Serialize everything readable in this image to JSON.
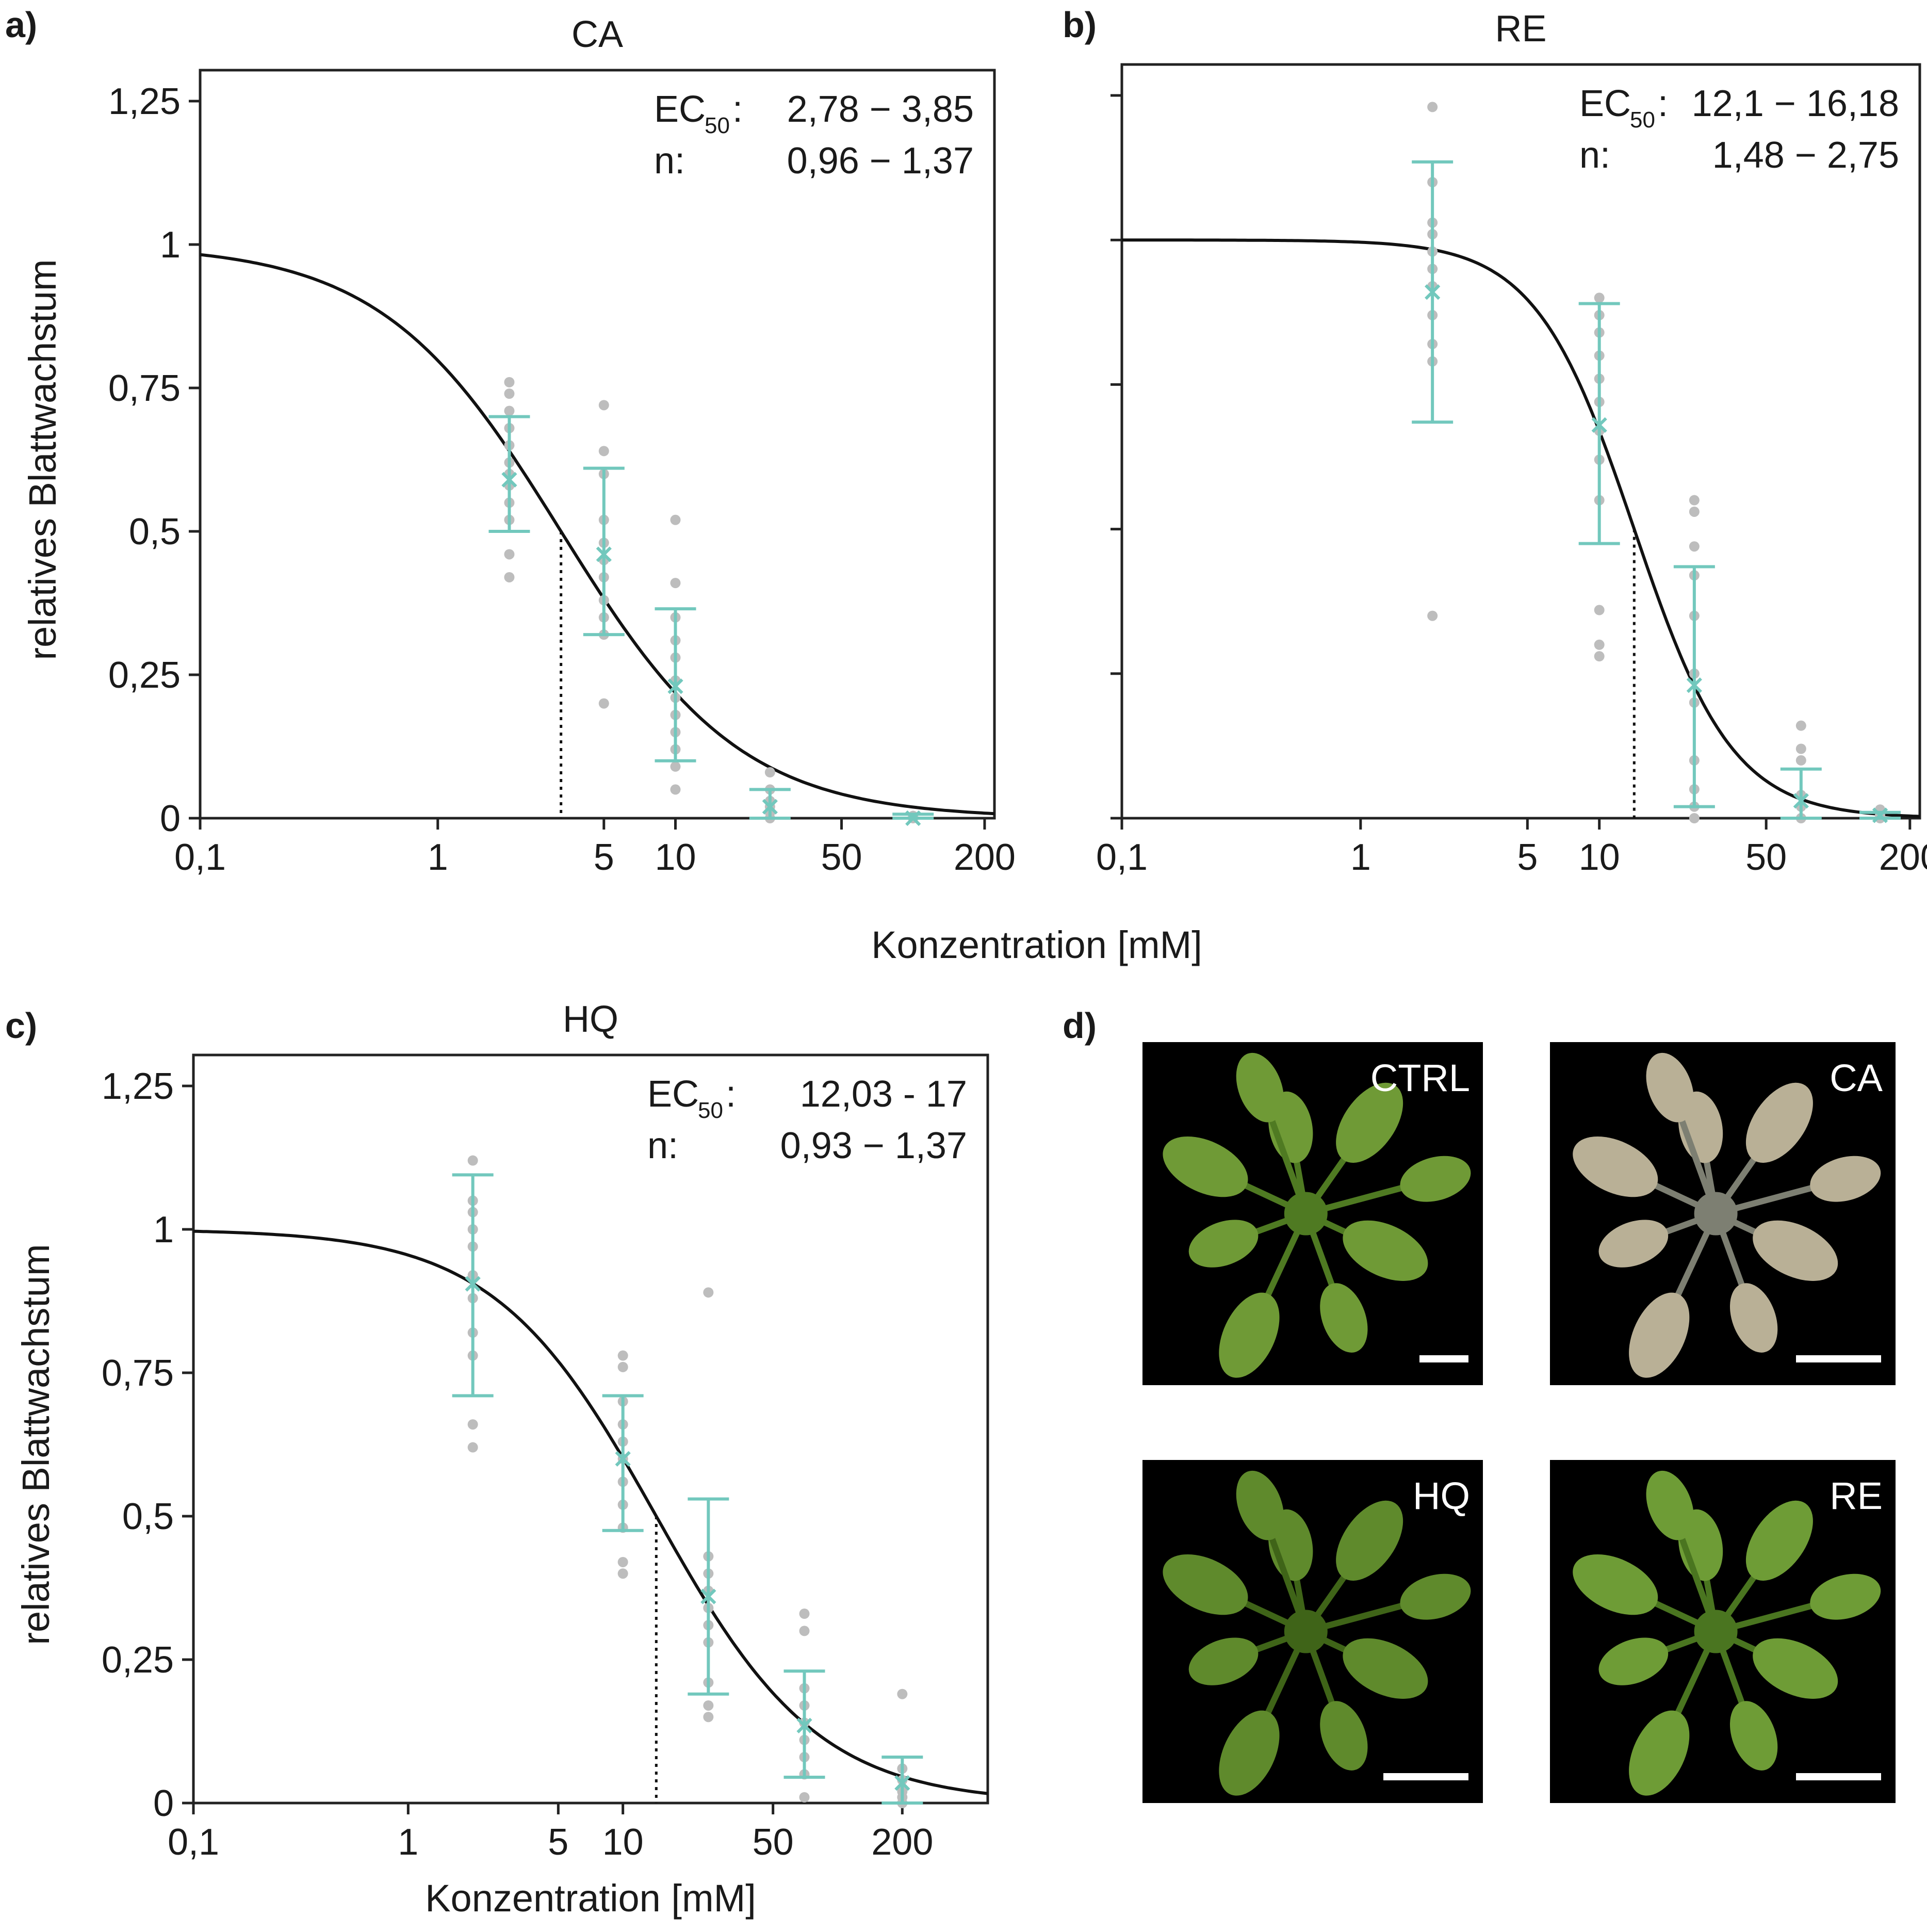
{
  "figure": {
    "shared_xlabel": "Konzentration [mM]",
    "photos": {
      "label": "d)",
      "items": [
        {
          "label": "CTRL",
          "leaf_color": "#6f9a36",
          "leaf_dark": "#4f7a22"
        },
        {
          "label": "CA",
          "leaf_color": "#b9b096",
          "leaf_dark": "#7d7f72"
        },
        {
          "label": "HQ",
          "leaf_color": "#5f8a2c",
          "leaf_dark": "#3f6418"
        },
        {
          "label": "RE",
          "leaf_color": "#6e9c36",
          "leaf_dark": "#4a7520"
        }
      ]
    }
  },
  "chart_data": [
    {
      "panel": "a)",
      "type": "scatter",
      "title": "CA",
      "xlabel": "",
      "ylabel": "relatives Blattwachstum",
      "xscale": "log",
      "xlim": [
        0.1,
        220
      ],
      "ylim": [
        0,
        1.25
      ],
      "xticks": [
        {
          "v": 0.1,
          "label": "0,1"
        },
        {
          "v": 1,
          "label": "1"
        },
        {
          "v": 5,
          "label": "5"
        },
        {
          "v": 10,
          "label": "10"
        },
        {
          "v": 50,
          "label": "50"
        },
        {
          "v": 200,
          "label": "200"
        }
      ],
      "yticks": [
        {
          "v": 0,
          "label": "0"
        },
        {
          "v": 0.25,
          "label": "0,25"
        },
        {
          "v": 0.5,
          "label": "0,5"
        },
        {
          "v": 0.75,
          "label": "0,75"
        },
        {
          "v": 1,
          "label": "1"
        },
        {
          "v": 1.25,
          "label": "1,25"
        }
      ],
      "annotation": {
        "ec50_label": "EC",
        "ec50_sub": "50",
        "ec50_colon": ":",
        "ec50_value": "2,78 − 3,85",
        "n_label": "n:",
        "n_value": "0,96 − 1,37"
      },
      "fit": {
        "ec50": 3.3,
        "hill": 1.15
      },
      "ec50_line_x": 3.3,
      "point_color": "#bdbdbd",
      "mean_color": "#72c8bd",
      "curve_color": "#111111",
      "groups": [
        {
          "x": 2,
          "mean": 0.59,
          "err_lo": 0.5,
          "err_hi": 0.7,
          "points": [
            0.42,
            0.46,
            0.52,
            0.55,
            0.58,
            0.6,
            0.62,
            0.65,
            0.68,
            0.71,
            0.74,
            0.76
          ]
        },
        {
          "x": 5,
          "mean": 0.46,
          "err_lo": 0.32,
          "err_hi": 0.61,
          "points": [
            0.2,
            0.32,
            0.35,
            0.38,
            0.42,
            0.45,
            0.48,
            0.52,
            0.6,
            0.64,
            0.72
          ]
        },
        {
          "x": 10,
          "mean": 0.23,
          "err_lo": 0.1,
          "err_hi": 0.365,
          "points": [
            0.05,
            0.09,
            0.12,
            0.15,
            0.18,
            0.21,
            0.24,
            0.28,
            0.31,
            0.35,
            0.41,
            0.52
          ]
        },
        {
          "x": 25,
          "mean": 0.02,
          "err_lo": 0.0,
          "err_hi": 0.05,
          "points": [
            0.0,
            0.01,
            0.02,
            0.03,
            0.05,
            0.08
          ]
        },
        {
          "x": 100,
          "mean": 0.0,
          "err_lo": 0.0,
          "err_hi": 0.007,
          "points": [
            0.0,
            0.002,
            0.004
          ]
        }
      ]
    },
    {
      "panel": "b)",
      "type": "scatter",
      "title": "RE",
      "xlabel": "",
      "ylabel": "",
      "xscale": "log",
      "xlim": [
        0.1,
        220
      ],
      "ylim": [
        0,
        1.25
      ],
      "xticks": [
        {
          "v": 0.1,
          "label": "0,1"
        },
        {
          "v": 1,
          "label": "1"
        },
        {
          "v": 5,
          "label": "5"
        },
        {
          "v": 10,
          "label": "10"
        },
        {
          "v": 50,
          "label": "50"
        },
        {
          "v": 200,
          "label": "200"
        }
      ],
      "yticks": [
        {
          "v": 0,
          "label": ""
        },
        {
          "v": 0.25,
          "label": ""
        },
        {
          "v": 0.5,
          "label": ""
        },
        {
          "v": 0.75,
          "label": ""
        },
        {
          "v": 1,
          "label": ""
        },
        {
          "v": 1.25,
          "label": ""
        }
      ],
      "annotation": {
        "ec50_label": "EC",
        "ec50_sub": "50",
        "ec50_colon": ":",
        "ec50_value": "12,1 − 16,18",
        "n_label": "n:",
        "n_value": "1,48 − 2,75"
      },
      "fit": {
        "ec50": 14,
        "hill": 2.1
      },
      "ec50_line_x": 14,
      "point_color": "#bdbdbd",
      "mean_color": "#72c8bd",
      "curve_color": "#111111",
      "groups": [
        {
          "x": 2,
          "mean": 0.91,
          "err_lo": 0.685,
          "err_hi": 1.135,
          "points": [
            0.35,
            0.79,
            0.82,
            0.87,
            0.92,
            0.95,
            0.98,
            1.01,
            1.03,
            1.1,
            1.23
          ]
        },
        {
          "x": 10,
          "mean": 0.68,
          "err_lo": 0.475,
          "err_hi": 0.89,
          "points": [
            0.28,
            0.3,
            0.36,
            0.55,
            0.62,
            0.67,
            0.72,
            0.76,
            0.8,
            0.84,
            0.87,
            0.9
          ]
        },
        {
          "x": 25,
          "mean": 0.23,
          "err_lo": 0.02,
          "err_hi": 0.435,
          "points": [
            0.0,
            0.02,
            0.05,
            0.1,
            0.2,
            0.25,
            0.35,
            0.42,
            0.47,
            0.53,
            0.55
          ]
        },
        {
          "x": 70,
          "mean": 0.03,
          "err_lo": 0.0,
          "err_hi": 0.085,
          "points": [
            0.0,
            0.02,
            0.04,
            0.1,
            0.12,
            0.16
          ]
        },
        {
          "x": 150,
          "mean": 0.005,
          "err_lo": 0.0,
          "err_hi": 0.01,
          "points": [
            0.0,
            0.005,
            0.01,
            0.015
          ]
        }
      ]
    },
    {
      "panel": "c)",
      "type": "scatter",
      "title": "HQ",
      "xlabel": "Konzentration [mM]",
      "ylabel": "relatives Blattwachstum",
      "xscale": "log",
      "xlim": [
        0.1,
        500
      ],
      "ylim": [
        0,
        1.25
      ],
      "xticks": [
        {
          "v": 0.1,
          "label": "0,1"
        },
        {
          "v": 1,
          "label": "1"
        },
        {
          "v": 5,
          "label": "5"
        },
        {
          "v": 10,
          "label": "10"
        },
        {
          "v": 50,
          "label": "50"
        },
        {
          "v": 200,
          "label": "200"
        }
      ],
      "yticks": [
        {
          "v": 0,
          "label": "0"
        },
        {
          "v": 0.25,
          "label": "0,25"
        },
        {
          "v": 0.5,
          "label": "0,5"
        },
        {
          "v": 0.75,
          "label": "0,75"
        },
        {
          "v": 1,
          "label": "1"
        },
        {
          "v": 1.25,
          "label": "1,25"
        }
      ],
      "annotation": {
        "ec50_label": "EC",
        "ec50_sub": "50",
        "ec50_colon": ":",
        "ec50_value": "12,03 - 17",
        "n_label": "n:",
        "n_value": "0,93 − 1,37"
      },
      "fit": {
        "ec50": 14.3,
        "hill": 1.15
      },
      "ec50_line_x": 14.3,
      "point_color": "#bdbdbd",
      "mean_color": "#72c8bd",
      "curve_color": "#111111",
      "groups": [
        {
          "x": 2,
          "mean": 0.905,
          "err_lo": 0.71,
          "err_hi": 1.095,
          "points": [
            0.62,
            0.66,
            0.78,
            0.82,
            0.88,
            0.92,
            0.97,
            1.0,
            1.03,
            1.05,
            1.12
          ]
        },
        {
          "x": 10,
          "mean": 0.6,
          "err_lo": 0.475,
          "err_hi": 0.71,
          "points": [
            0.4,
            0.42,
            0.48,
            0.52,
            0.56,
            0.6,
            0.63,
            0.66,
            0.7,
            0.76,
            0.78
          ]
        },
        {
          "x": 25,
          "mean": 0.36,
          "err_lo": 0.19,
          "err_hi": 0.53,
          "points": [
            0.15,
            0.17,
            0.21,
            0.28,
            0.31,
            0.34,
            0.37,
            0.4,
            0.43,
            0.89
          ]
        },
        {
          "x": 70,
          "mean": 0.135,
          "err_lo": 0.045,
          "err_hi": 0.23,
          "points": [
            0.01,
            0.05,
            0.08,
            0.11,
            0.14,
            0.17,
            0.2,
            0.3,
            0.33
          ]
        },
        {
          "x": 200,
          "mean": 0.035,
          "err_lo": 0.0,
          "err_hi": 0.08,
          "points": [
            0.0,
            0.01,
            0.02,
            0.04,
            0.06,
            0.19
          ]
        }
      ]
    }
  ]
}
